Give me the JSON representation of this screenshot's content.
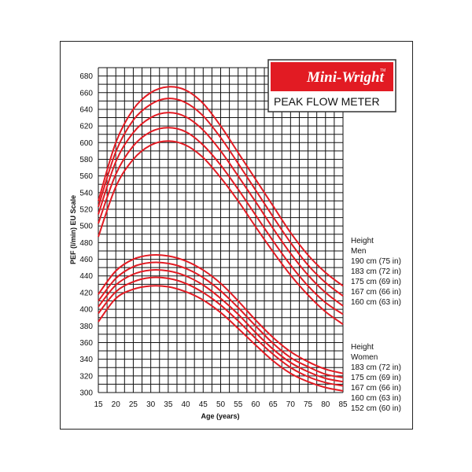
{
  "logo": {
    "brand": "Mini-Wright",
    "trademark": "TM",
    "product": "PEAK FLOW METER",
    "brand_color": "#e21b23"
  },
  "chart_data": {
    "type": "line",
    "xlabel": "Age (years)",
    "ylabel": "PEF (l/min) EU Scale",
    "xlim": [
      15,
      85
    ],
    "ylim": [
      300,
      690
    ],
    "x_ticks": [
      15,
      20,
      25,
      30,
      35,
      40,
      45,
      50,
      55,
      60,
      65,
      70,
      75,
      80,
      85
    ],
    "y_ticks": [
      300,
      320,
      340,
      360,
      380,
      400,
      420,
      440,
      460,
      480,
      500,
      520,
      540,
      560,
      580,
      600,
      620,
      640,
      660,
      680
    ],
    "grid": true,
    "line_color": "#e21b23",
    "x": [
      15,
      20,
      25,
      30,
      35,
      40,
      45,
      50,
      55,
      60,
      65,
      70,
      75,
      80,
      85
    ],
    "groups": [
      {
        "title": "Height",
        "subtitle": "Men",
        "series": [
          {
            "name": "190 cm (75 in)",
            "values": [
              530,
              600,
              640,
              660,
              667,
              663,
              647,
              620,
              588,
              556,
              524,
              492,
              465,
              444,
              428
            ]
          },
          {
            "name": "183 cm (72 in)",
            "values": [
              523,
              589,
              627,
              646,
              653,
              648,
              632,
              606,
              575,
              543,
              511,
              480,
              453,
              432,
              416
            ]
          },
          {
            "name": "175 cm (69 in)",
            "values": [
              514,
              577,
              612,
              630,
              636,
              631,
              615,
              590,
              560,
              529,
              497,
              467,
              441,
              420,
              404
            ]
          },
          {
            "name": "167 cm (66 in)",
            "values": [
              503,
              562,
              596,
              613,
              618,
              613,
              597,
              573,
              544,
              513,
              482,
              453,
              428,
              408,
              394
            ]
          },
          {
            "name": "160 cm (63 in)",
            "values": [
              487,
              547,
              580,
              597,
              602,
              597,
              582,
              558,
              530,
              499,
              469,
              441,
              417,
              397,
              382
            ]
          }
        ]
      },
      {
        "title": "Height",
        "subtitle": "Women",
        "series": [
          {
            "name": "183 cm (72 in)",
            "values": [
              418,
              446,
              460,
              465,
              464,
              458,
              447,
              431,
              410,
              387,
              366,
              349,
              337,
              328,
              323
            ]
          },
          {
            "name": "175 cm (69 in)",
            "values": [
              410,
              437,
              451,
              456,
              455,
              449,
              438,
              422,
              402,
              380,
              359,
              342,
              331,
              322,
              318
            ]
          },
          {
            "name": "167 cm (66 in)",
            "values": [
              403,
              429,
              442,
              447,
              446,
              440,
              429,
              413,
              394,
              372,
              352,
              336,
              325,
              317,
              313
            ]
          },
          {
            "name": "160 cm (63 in)",
            "values": [
              395,
              421,
              433,
              438,
              437,
              431,
              420,
              405,
              386,
              365,
              346,
              330,
              319,
              312,
              308
            ]
          },
          {
            "name": "152 cm (60 in)",
            "values": [
              385,
              413,
              424,
              428,
              427,
              421,
              411,
              396,
              377,
              357,
              338,
              323,
              313,
              306,
              302
            ]
          }
        ]
      }
    ]
  }
}
